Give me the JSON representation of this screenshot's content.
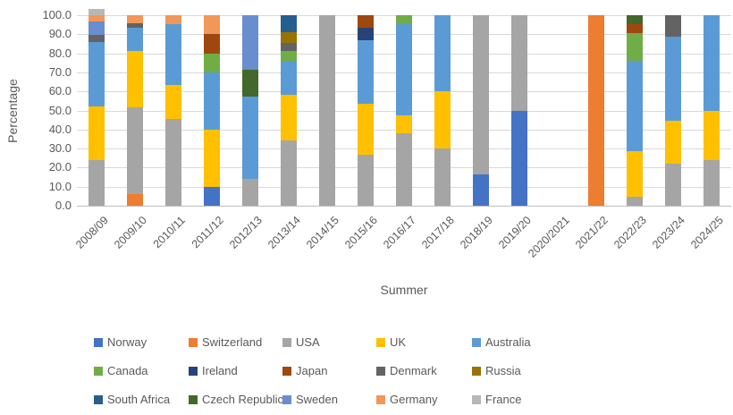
{
  "chart_data": {
    "type": "bar",
    "stacked": true,
    "percent_stacked": true,
    "xlabel": "Summer",
    "ylabel": "Percentage",
    "ylim": [
      0,
      100
    ],
    "ytick_labels": [
      "0.0",
      "10.0",
      "20.0",
      "30.0",
      "40.0",
      "50.0",
      "60.0",
      "70.0",
      "80.0",
      "90.0",
      "100.0"
    ],
    "grid": true,
    "gridline_color": "#d9d9d9",
    "axis_line_color": "#bfbfbf",
    "text_color": "#595959",
    "legend_position": "bottom",
    "legend_columns": 5,
    "categories": [
      "2008/09",
      "2009/10",
      "2010/11",
      "2011/12",
      "2012/13",
      "2013/14",
      "2014/15",
      "2015/16",
      "2016/17",
      "2017/18",
      "2018/19",
      "2019/20",
      "2020/2021",
      "2021/22",
      "2022/23",
      "2023/24",
      "2024/25"
    ],
    "series": [
      {
        "name": "Norway",
        "color": "#4472C4",
        "values": [
          0,
          0,
          0,
          10,
          0,
          0,
          0,
          0,
          0,
          0,
          16.5,
          50,
          0,
          0,
          0,
          0,
          0
        ]
      },
      {
        "name": "Switzerland",
        "color": "#ED7D31",
        "values": [
          0,
          6,
          0,
          0,
          0,
          0,
          0,
          0,
          0,
          0,
          0,
          0,
          0,
          100,
          0,
          0,
          0
        ]
      },
      {
        "name": "USA",
        "color": "#A5A5A5",
        "values": [
          24,
          45.5,
          45.5,
          0,
          14.3,
          34.5,
          100,
          26.7,
          38,
          30,
          83.5,
          50,
          0,
          0,
          4.8,
          22.2,
          24
        ]
      },
      {
        "name": "UK",
        "color": "#FFC000",
        "values": [
          28,
          29.5,
          18,
          30,
          0,
          23.5,
          0,
          26.6,
          9.6,
          30,
          0,
          0,
          0,
          0,
          23.8,
          22.2,
          26
        ]
      },
      {
        "name": "Australia",
        "color": "#5B9BD5",
        "values": [
          34,
          12.5,
          32,
          30,
          42.8,
          18,
          0,
          33.4,
          47.6,
          40,
          0,
          0,
          0,
          0,
          47.6,
          44.5,
          50
        ]
      },
      {
        "name": "Canada",
        "color": "#70AD47",
        "values": [
          0,
          0,
          0,
          10,
          0,
          5,
          0,
          0,
          4.8,
          0,
          0,
          0,
          0,
          0,
          14.3,
          0,
          0
        ]
      },
      {
        "name": "Ireland",
        "color": "#264478",
        "values": [
          0,
          0,
          0,
          0,
          0,
          0,
          0,
          6.6,
          0,
          0,
          0,
          0,
          0,
          0,
          0,
          0,
          0
        ]
      },
      {
        "name": "Japan",
        "color": "#9E480E",
        "values": [
          0,
          0,
          0,
          10,
          0,
          0,
          0,
          6.7,
          0,
          0,
          0,
          0,
          0,
          0,
          4.7,
          0,
          0
        ]
      },
      {
        "name": "Denmark",
        "color": "#636363",
        "values": [
          3.5,
          2.5,
          0,
          0,
          0,
          4.5,
          0,
          0,
          0,
          0,
          0,
          0,
          0,
          0,
          0,
          11.1,
          0
        ]
      },
      {
        "name": "Russia",
        "color": "#997300",
        "values": [
          0,
          0,
          0,
          0,
          0,
          5.5,
          0,
          0,
          0,
          0,
          0,
          0,
          0,
          0,
          0,
          0,
          0
        ]
      },
      {
        "name": "South Africa",
        "color": "#255E91",
        "values": [
          0,
          0,
          0,
          0,
          0,
          9,
          0,
          0,
          0,
          0,
          0,
          0,
          0,
          0,
          0,
          0,
          0
        ]
      },
      {
        "name": "Czech Republic",
        "color": "#43682B",
        "values": [
          0,
          0,
          0,
          0,
          14.3,
          0,
          0,
          0,
          0,
          0,
          0,
          0,
          0,
          0,
          4.8,
          0,
          0
        ]
      },
      {
        "name": "Sweden",
        "color": "#698ED0",
        "values": [
          7,
          0,
          0,
          0,
          28.6,
          0,
          0,
          0,
          0,
          0,
          0,
          0,
          0,
          0,
          0,
          0,
          0
        ]
      },
      {
        "name": "Germany",
        "color": "#F1975A",
        "values": [
          3.5,
          4,
          4.5,
          10,
          0,
          0,
          0,
          0,
          0,
          0,
          0,
          0,
          0,
          0,
          0,
          0,
          0
        ]
      },
      {
        "name": "France",
        "color": "#B7B7B7",
        "values": [
          3.5,
          0,
          0,
          0,
          0,
          0,
          0,
          0,
          0,
          0,
          0,
          0,
          0,
          0,
          0,
          0,
          0
        ]
      }
    ]
  }
}
